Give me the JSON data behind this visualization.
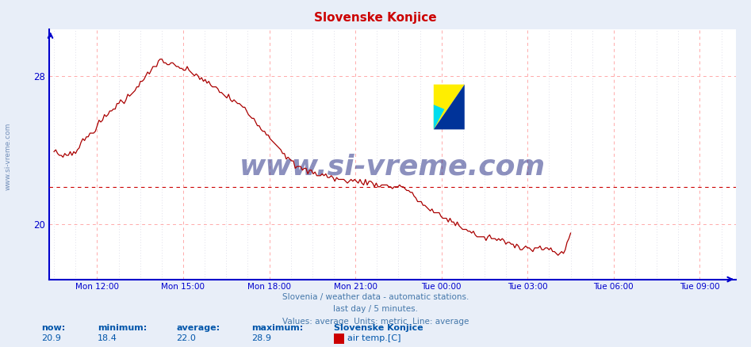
{
  "title": "Slovenske Konjice",
  "title_color": "#cc0000",
  "bg_color": "#e8eef8",
  "plot_bg_color": "#ffffff",
  "line_color": "#aa0000",
  "axis_color": "#0000cc",
  "grid_color_major": "#ffaaaa",
  "grid_color_minor": "#ccccdd",
  "yticks": [
    20,
    28
  ],
  "ylim": [
    17.0,
    30.5
  ],
  "avg_line_y": 22.0,
  "avg_line_color": "#cc0000",
  "watermark": "www.si-vreme.com",
  "watermark_color": "#1a237e",
  "subtitle1": "Slovenia / weather data - automatic stations.",
  "subtitle2": "last day / 5 minutes.",
  "subtitle3": "Values: average  Units: metric  Line: average",
  "subtitle_color": "#4477aa",
  "footer_color": "#0055aa",
  "legend_label": "air temp.[C]",
  "legend_color": "#cc0000",
  "sidewatermark": "www.si-vreme.com",
  "sidewatermark_color": "#5577aa",
  "xtick_labels": [
    "Mon 12:00",
    "Mon 15:00",
    "Mon 18:00",
    "Mon 21:00",
    "Tue 00:00",
    "Tue 03:00",
    "Tue 06:00",
    "Tue 09:00"
  ],
  "xtick_positions": [
    0.0833,
    0.25,
    0.4167,
    0.5833,
    0.75,
    0.9167,
    1.0833,
    1.25
  ],
  "xlim": [
    -0.01,
    1.32
  ],
  "n_points": 288
}
